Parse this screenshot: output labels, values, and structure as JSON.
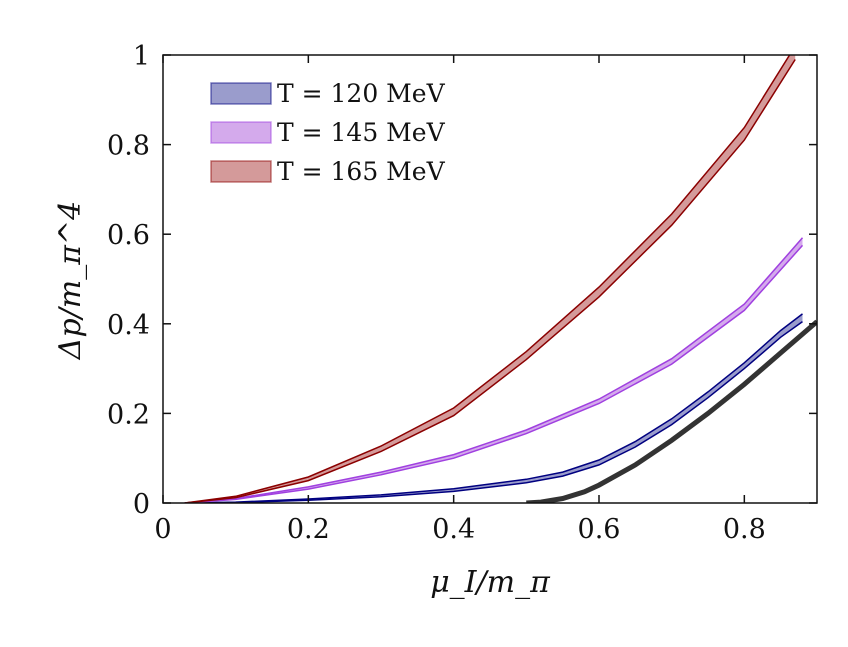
{
  "chart_data": {
    "type": "line",
    "title": "",
    "xlabel": "μ_I/m_π",
    "ylabel": "Δp/m_π^4",
    "xlim": [
      0,
      0.9
    ],
    "ylim": [
      0,
      1
    ],
    "xticks": [
      "0",
      "0.2",
      "0.4",
      "0.6",
      "0.8"
    ],
    "yticks": [
      "0",
      "0.2",
      "0.4",
      "0.6",
      "0.8",
      "1"
    ],
    "grid": false,
    "legend_position": "top-left",
    "series": [
      {
        "name": "T = 120 MeV",
        "color": "#000080",
        "fill": "#9a9ccc",
        "x": [
          0.03,
          0.1,
          0.2,
          0.3,
          0.4,
          0.5,
          0.55,
          0.6,
          0.65,
          0.7,
          0.75,
          0.8,
          0.85,
          0.88
        ],
        "lower": [
          0,
          0.001,
          0.006,
          0.014,
          0.026,
          0.045,
          0.06,
          0.085,
          0.125,
          0.175,
          0.235,
          0.3,
          0.37,
          0.405
        ],
        "upper": [
          0,
          0.002,
          0.009,
          0.018,
          0.032,
          0.053,
          0.069,
          0.096,
          0.137,
          0.188,
          0.248,
          0.313,
          0.385,
          0.422
        ]
      },
      {
        "name": "T = 145 MeV",
        "color": "#a040e0",
        "fill": "#d4aaec",
        "x": [
          0.03,
          0.1,
          0.2,
          0.3,
          0.4,
          0.5,
          0.6,
          0.7,
          0.8,
          0.88
        ],
        "lower": [
          0,
          0.008,
          0.031,
          0.063,
          0.1,
          0.155,
          0.222,
          0.31,
          0.43,
          0.575
        ],
        "upper": [
          0,
          0.01,
          0.036,
          0.069,
          0.108,
          0.163,
          0.232,
          0.322,
          0.444,
          0.592
        ]
      },
      {
        "name": "T = 165 MeV",
        "color": "#8b0000",
        "fill": "#d49a9a",
        "x": [
          0.03,
          0.1,
          0.2,
          0.3,
          0.4,
          0.5,
          0.6,
          0.7,
          0.8,
          0.87
        ],
        "lower": [
          0,
          0.012,
          0.05,
          0.115,
          0.195,
          0.32,
          0.46,
          0.62,
          0.81,
          0.99
        ],
        "upper": [
          0,
          0.015,
          0.058,
          0.127,
          0.212,
          0.338,
          0.482,
          0.645,
          0.838,
          1.02
        ]
      },
      {
        "color": "#333333",
        "x": [
          0.5,
          0.52,
          0.55,
          0.58,
          0.6,
          0.65,
          0.7,
          0.75,
          0.8,
          0.85,
          0.9
        ],
        "y": [
          0,
          0.002,
          0.01,
          0.025,
          0.04,
          0.085,
          0.14,
          0.2,
          0.265,
          0.335,
          0.405
        ]
      }
    ]
  }
}
